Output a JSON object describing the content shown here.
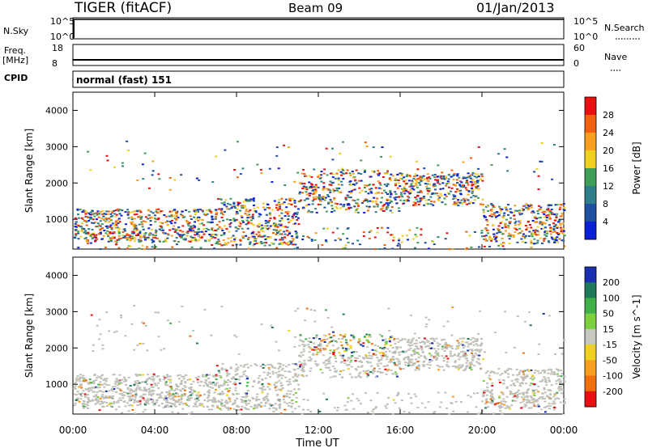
{
  "header": {
    "radar": "TIGER (fitACF)",
    "beam": "Beam 09",
    "date": "01/Jan/2013"
  },
  "summary": {
    "nsky_label": "N.Sky",
    "nsky_ticks": [
      "10^5",
      "10^0"
    ],
    "nsearch_label": "N.Search",
    "nsearch_ticks": [
      "10^5",
      "10^0"
    ],
    "freq_label_1": "Freq.",
    "freq_label_2": "[MHz]",
    "freq_ticks": [
      "18",
      "8"
    ],
    "nave_label": "Nave",
    "nave_ticks": [
      "60",
      "0"
    ],
    "cpid_label": "CPID",
    "cpid_value": "normal (fast) 151"
  },
  "colors": {
    "power_scale": [
      "#0a1fd6",
      "#1f4fa0",
      "#2f7f8a",
      "#3f9f5a",
      "#f0d020",
      "#f7a020",
      "#f06010",
      "#e81010"
    ],
    "velocity_scale": [
      "#1a2fb0",
      "#1f7a5a",
      "#3fb04a",
      "#7fd040",
      "#c8c8c0",
      "#f0d020",
      "#f7a020",
      "#f07010",
      "#e81010"
    ],
    "ground_scatter": "#c0c0b8"
  },
  "chart_data": [
    {
      "type": "heatmap",
      "parameter": "Power",
      "ylabel": "Slant Range [km]",
      "xlabel": "Time UT",
      "ylim": [
        180,
        4500
      ],
      "xlim": [
        "00:00",
        "24:00"
      ],
      "yticks": [
        "1000",
        "2000",
        "3000",
        "4000"
      ],
      "xticks": [
        "00:00",
        "04:00",
        "08:00",
        "12:00",
        "16:00",
        "20:00",
        "00:00"
      ],
      "colorbar_label": "Power [dB]",
      "colorbar_ticks": [
        "28",
        "24",
        "20",
        "16",
        "12",
        "8",
        "4"
      ],
      "colorbar_range": [
        0,
        32
      ]
    },
    {
      "type": "heatmap",
      "parameter": "Velocity",
      "ylabel": "Slant Range [km]",
      "xlabel": "Time UT",
      "ylim": [
        180,
        4500
      ],
      "xlim": [
        "00:00",
        "24:00"
      ],
      "yticks": [
        "1000",
        "2000",
        "3000",
        "4000"
      ],
      "xticks": [
        "00:00",
        "04:00",
        "08:00",
        "12:00",
        "16:00",
        "20:00",
        "00:00"
      ],
      "colorbar_label": "Velocity [m s^-1]",
      "colorbar_ticks": [
        "200",
        "100",
        "50",
        "15",
        "-15",
        "-50",
        "-100",
        "-200"
      ],
      "colorbar_range": [
        -250,
        250
      ]
    }
  ]
}
